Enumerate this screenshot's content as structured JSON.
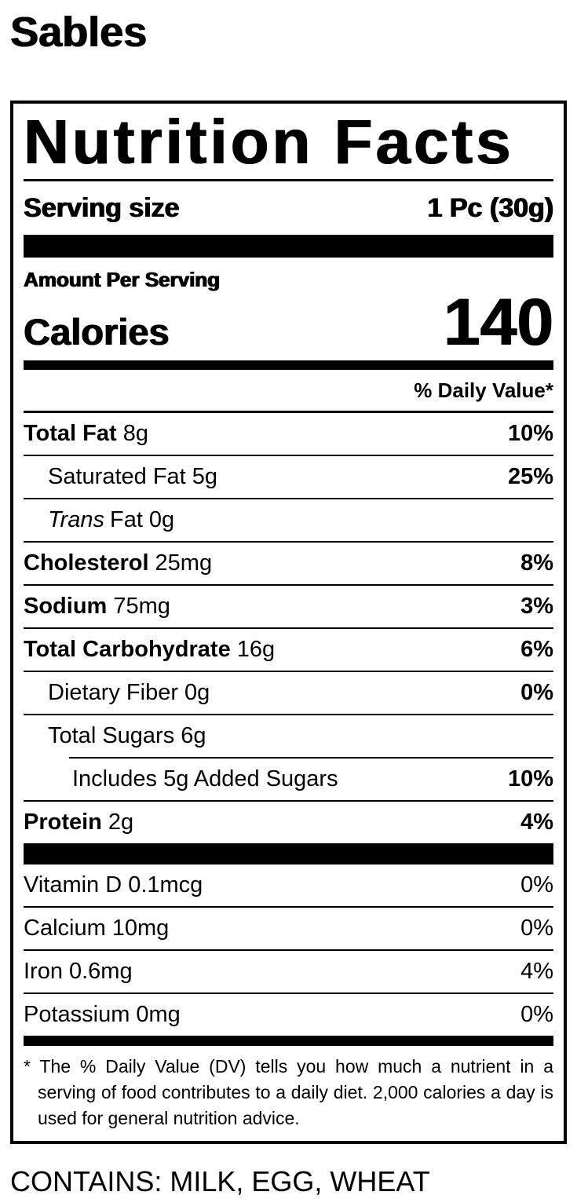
{
  "page": {
    "title": "Sables",
    "contains_statement": "CONTAINS: MILK, EGG, WHEAT"
  },
  "label": {
    "heading": "Nutrition Facts",
    "serving_size_label": "Serving size",
    "serving_size_value": "1 Pc (30g)",
    "amount_per_serving_label": "Amount Per Serving",
    "calories_label": "Calories",
    "calories_value": "140",
    "daily_value_header": "% Daily Value*",
    "nutrients": [
      {
        "name": "Total Fat",
        "amount": "8g",
        "dv": "10%"
      },
      {
        "name": "Saturated Fat",
        "amount": "5g",
        "dv": "25%"
      },
      {
        "name_italic": "Trans",
        "name": "Fat",
        "amount": "0g",
        "dv": ""
      },
      {
        "name": "Cholesterol",
        "amount": "25mg",
        "dv": "8%"
      },
      {
        "name": "Sodium",
        "amount": "75mg",
        "dv": "3%"
      },
      {
        "name": "Total Carbohydrate",
        "amount": "16g",
        "dv": "6%"
      },
      {
        "name": "Dietary Fiber",
        "amount": "0g",
        "dv": "0%"
      },
      {
        "name": "Total Sugars",
        "amount": "6g",
        "dv": ""
      },
      {
        "name": "Includes 5g Added Sugars",
        "amount": "",
        "dv": "10%"
      },
      {
        "name": "Protein",
        "amount": "2g",
        "dv": "4%"
      }
    ],
    "micronutrients": [
      {
        "name": "Vitamin D",
        "amount": "0.1mcg",
        "dv": "0%"
      },
      {
        "name": "Calcium",
        "amount": "10mg",
        "dv": "0%"
      },
      {
        "name": "Iron",
        "amount": "0.6mg",
        "dv": "4%"
      },
      {
        "name": "Potassium",
        "amount": "0mg",
        "dv": "0%"
      }
    ],
    "footnote": "* The % Daily Value (DV) tells you how much a nutrient in a serving of food contributes to a daily diet. 2,000 calories a day is used for general nutrition advice.",
    "colors": {
      "ink": "#000000",
      "background": "#ffffff"
    }
  }
}
